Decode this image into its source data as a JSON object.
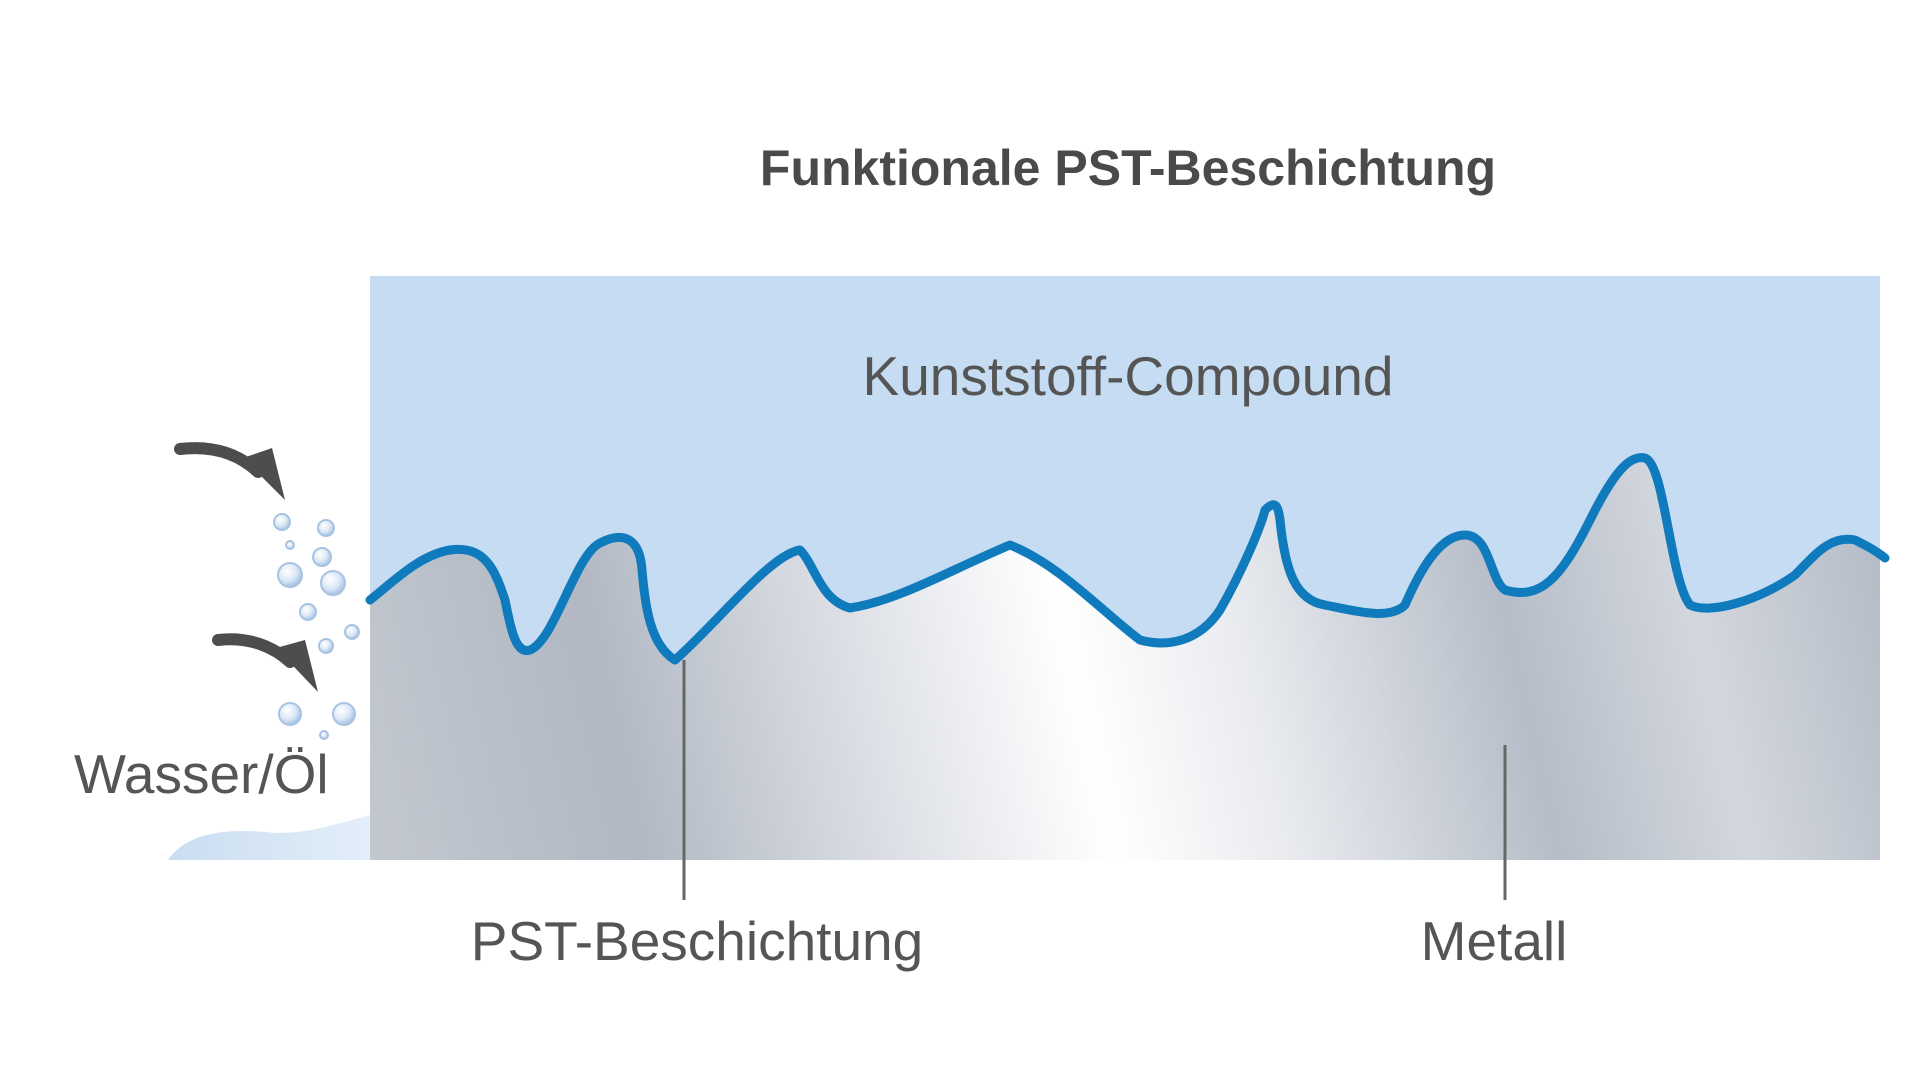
{
  "diagram": {
    "title": "Funktionale PST-Beschichtung",
    "labels": {
      "compound": "Kunststoff-Compound",
      "coating": "PST-Beschichtung",
      "metal": "Metall",
      "fluid": "Wasser/Öl"
    },
    "colors": {
      "compound_fill": "#c6dcf2",
      "coating_line": "#0f7bbd",
      "metal_light": "#f4f5f8",
      "metal_dark": "#aab2bf",
      "text": "#555555",
      "title_text": "#4a4a4a",
      "leader_line": "#666666",
      "arrow": "#4d4d4d",
      "bubble": "#bcd2ea"
    },
    "icons": {
      "arrows": "curved-arrow-icon",
      "bubbles": "bubble-icon"
    }
  }
}
